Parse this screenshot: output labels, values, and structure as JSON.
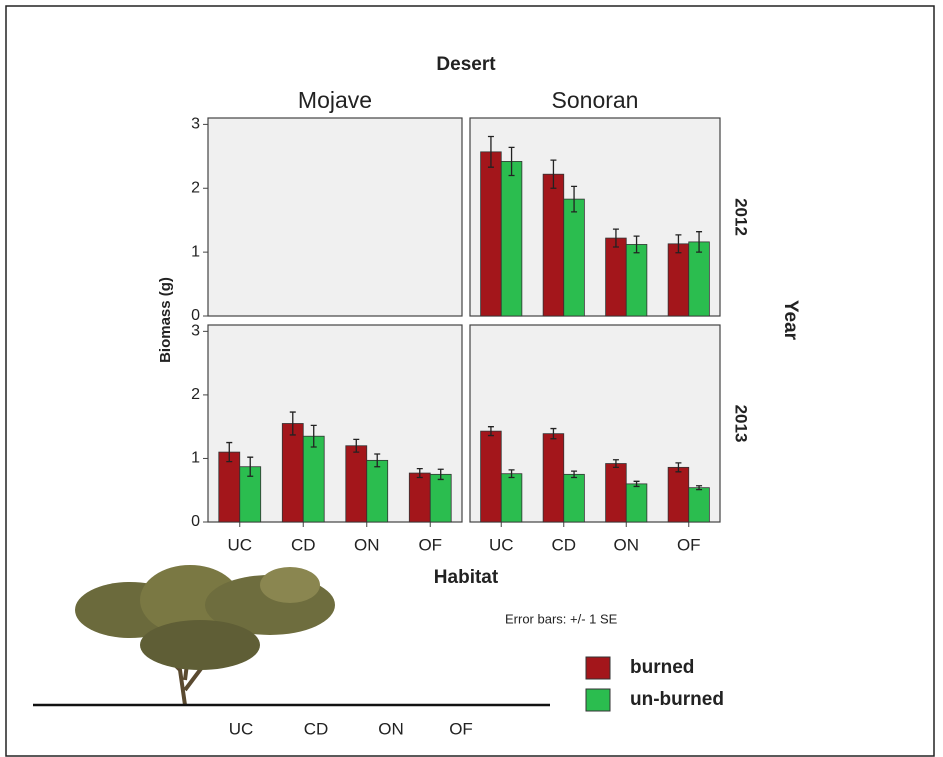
{
  "chart_data": {
    "type": "bar",
    "title": "Desert",
    "x_label": "Habitat",
    "y_label": "Biomass (g)",
    "facet_label": "Year",
    "columns": [
      "Mojave",
      "Sonoran"
    ],
    "rows": [
      "2012",
      "2013"
    ],
    "categories": [
      "UC",
      "CD",
      "ON",
      "OF"
    ],
    "ylim": [
      0,
      3.1
    ],
    "yticks": [
      0,
      1,
      2,
      3
    ],
    "series": [
      {
        "name": "burned",
        "color": "#a3161b",
        "values": [
          [
            null,
            null,
            null,
            null
          ],
          [
            2.57,
            2.22,
            1.22,
            1.13
          ],
          [
            1.1,
            1.55,
            1.2,
            0.77
          ],
          [
            1.43,
            1.39,
            0.92,
            0.86
          ]
        ],
        "errors": [
          [
            null,
            null,
            null,
            null
          ],
          [
            0.24,
            0.22,
            0.14,
            0.14
          ],
          [
            0.15,
            0.18,
            0.1,
            0.07
          ],
          [
            0.07,
            0.08,
            0.06,
            0.07
          ]
        ]
      },
      {
        "name": "un-burned",
        "color": "#2bbd4f",
        "values": [
          [
            null,
            null,
            null,
            null
          ],
          [
            2.42,
            1.83,
            1.12,
            1.16
          ],
          [
            0.87,
            1.35,
            0.97,
            0.75
          ],
          [
            0.76,
            0.75,
            0.6,
            0.54
          ]
        ],
        "errors": [
          [
            null,
            null,
            null,
            null
          ],
          [
            0.22,
            0.2,
            0.13,
            0.16
          ],
          [
            0.15,
            0.17,
            0.1,
            0.08
          ],
          [
            0.06,
            0.05,
            0.04,
            0.03
          ]
        ]
      }
    ],
    "note": "Error bars: +/- 1 SE",
    "diagram_labels": [
      "UC",
      "CD",
      "ON",
      "OF"
    ]
  }
}
